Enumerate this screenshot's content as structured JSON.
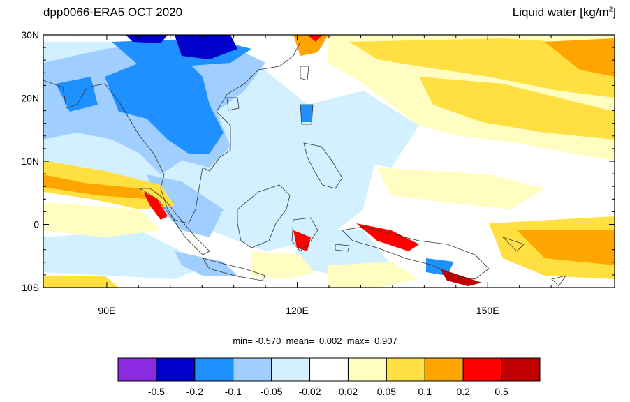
{
  "title": {
    "left": "dpp0066-ERA5 OCT 2020",
    "right_text": "Liquid water  [kg/m",
    "right_sup": "2",
    "right_close": "]"
  },
  "map": {
    "lat_labels": [
      "30N",
      "20N",
      "10N",
      "0",
      "10S"
    ],
    "lon_labels": [
      "90E",
      "120E",
      "150E"
    ],
    "lat_range": [
      -10,
      30
    ],
    "lon_range": [
      80,
      170
    ]
  },
  "stats": {
    "min_label": "min=",
    "min_value": "-0.570",
    "mean_label": "mean=",
    "mean_value": "0.002",
    "max_label": "max=",
    "max_value": "0.907"
  },
  "colorbar": {
    "colors": [
      "#8a2be2",
      "#0000cd",
      "#1e90ff",
      "#a0cfff",
      "#d2f0ff",
      "#ffffff",
      "#fffdc0",
      "#ffe040",
      "#ffa500",
      "#ff0000",
      "#c00000"
    ],
    "labels": [
      "-0.5",
      "-0.2",
      "-0.1",
      "-0.05",
      "-0.02",
      "0.02",
      "0.05",
      "0.1",
      "0.2",
      "0.5"
    ]
  }
}
